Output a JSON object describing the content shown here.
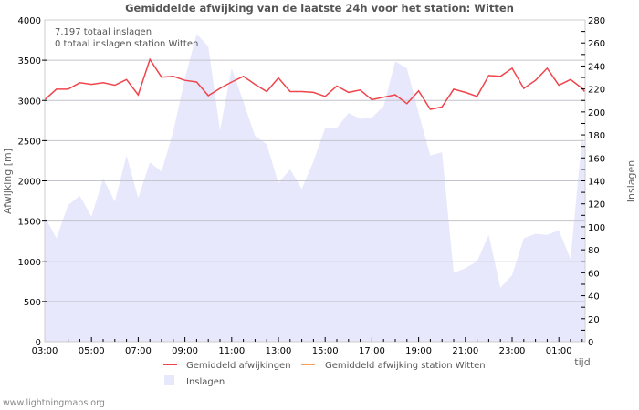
{
  "chart_data": {
    "type": "line+area",
    "title": "Gemiddelde afwijking van de laatste 24h voor het station: Witten",
    "info_lines": [
      "7.197 totaal inslagen",
      "0 totaal inslagen station Witten"
    ],
    "xlabel": "tijd",
    "ylabel_left": "Afwijking  [m]",
    "ylabel_right": "Inslagen",
    "ylim_left": [
      0,
      4000
    ],
    "ylim_right": [
      0,
      280
    ],
    "left_ticks": [
      0,
      500,
      1000,
      1500,
      2000,
      2500,
      3000,
      3500,
      4000
    ],
    "right_ticks": [
      0,
      20,
      40,
      60,
      80,
      100,
      120,
      140,
      160,
      180,
      200,
      220,
      240,
      260,
      280
    ],
    "x_tick_labels": [
      "03:00",
      "05:00",
      "07:00",
      "09:00",
      "11:00",
      "13:00",
      "15:00",
      "17:00",
      "19:00",
      "21:00",
      "23:00",
      "01:00"
    ],
    "grid": true,
    "legend": [
      {
        "label": "Gemiddeld afwijkingen",
        "type": "line",
        "color": "#f0444c"
      },
      {
        "label": "Gemiddeld afwijking station Witten",
        "type": "line",
        "color": "#f5a05a"
      },
      {
        "label": "Inslagen",
        "type": "area",
        "color": "#e8e8fc"
      }
    ],
    "x_hours_from_0300": [
      0,
      0.5,
      1,
      1.5,
      2,
      2.5,
      3,
      3.5,
      4,
      4.5,
      5,
      5.5,
      6,
      6.5,
      7,
      7.5,
      8,
      8.5,
      9,
      9.5,
      10,
      10.5,
      11,
      11.5,
      12,
      12.5,
      13,
      13.5,
      14,
      14.5,
      15,
      15.5,
      16,
      16.5,
      17,
      17.5,
      18,
      18.5,
      19,
      19.5,
      20,
      20.5,
      21,
      21.5,
      22,
      22.5,
      23,
      23.1
    ],
    "series": [
      {
        "name": "Gemiddeld afwijkingen",
        "axis": "left",
        "values": [
          3010,
          3140,
          3140,
          3220,
          3200,
          3220,
          3190,
          3260,
          3070,
          3510,
          3290,
          3300,
          3250,
          3230,
          3060,
          3150,
          3230,
          3300,
          3200,
          3110,
          3280,
          3110,
          3110,
          3100,
          3050,
          3180,
          3100,
          3130,
          3010,
          3040,
          3070,
          2960,
          3120,
          2890,
          2920,
          3140,
          3100,
          3050,
          3310,
          3300,
          3400,
          3150,
          3250,
          3400,
          3190,
          3260,
          3150,
          3110
        ]
      },
      {
        "name": "Gemiddeld afwijking station Witten",
        "axis": "left",
        "values": []
      },
      {
        "name": "Inslagen",
        "axis": "right",
        "values": [
          109,
          90,
          119,
          127,
          109,
          142,
          122,
          162,
          125,
          156,
          148,
          183,
          229,
          268,
          257,
          184,
          238,
          209,
          179,
          172,
          138,
          150,
          133,
          157,
          186,
          186,
          199,
          194,
          195,
          205,
          244,
          238,
          199,
          162,
          165,
          60,
          64,
          70,
          93,
          47,
          58,
          90,
          94,
          93,
          97,
          72,
          179,
          170
        ]
      }
    ]
  },
  "footer": "www.lightningmaps.org"
}
